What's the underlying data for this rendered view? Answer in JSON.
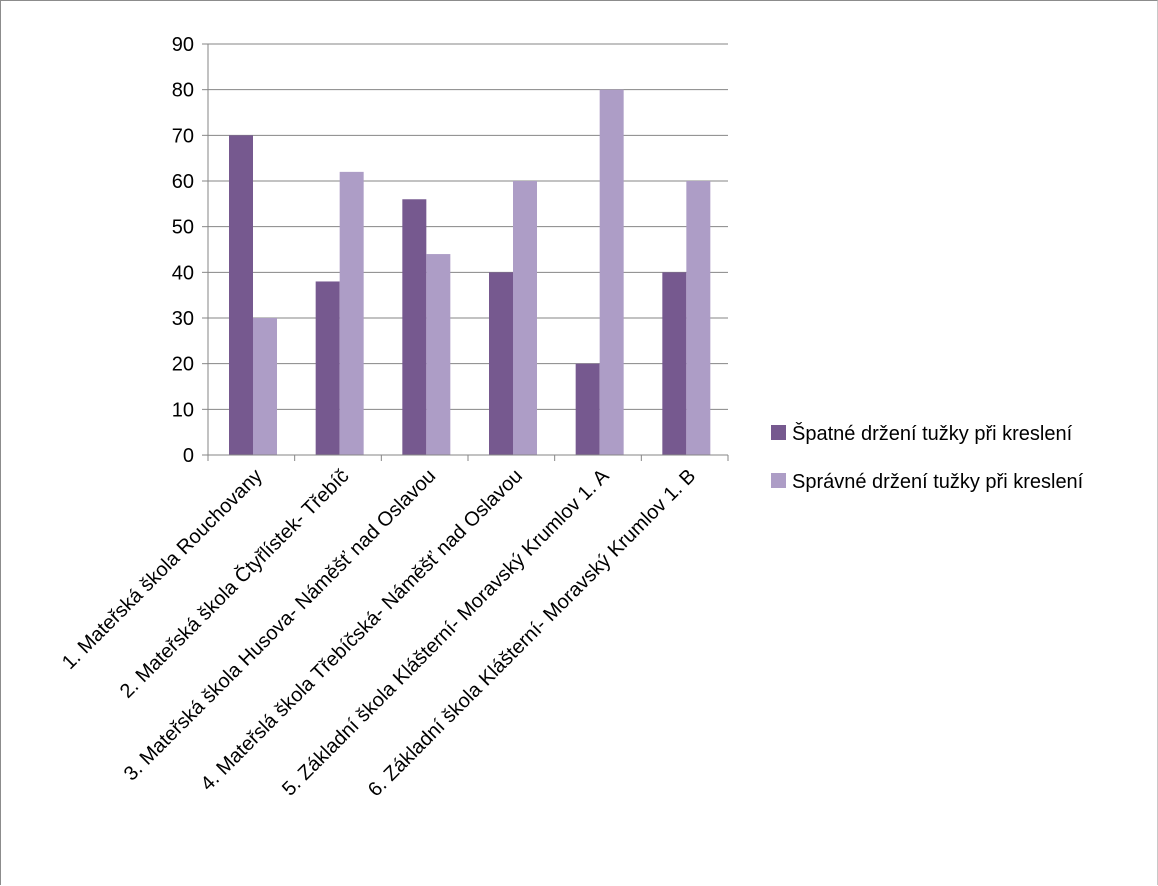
{
  "chart_data": {
    "type": "bar",
    "categories": [
      "1. Mateřská škola Rouchovany",
      "2. Mateřská škola Čtyřlístek- Třebíč",
      "3. Mateřská škola Husova- Náměšť nad Oslavou",
      "4. Mateřslá škola Třebíčská- Náměšť nad Oslavou",
      "5. Základní škola Klášterní- Moravský Krumlov 1. A",
      "6. Základní škola Klášterní- Moravský Krumlov 1. B"
    ],
    "series": [
      {
        "name": "Špatné držení tužky při kreslení",
        "color": "#76598f",
        "values": [
          70,
          38,
          56,
          40,
          20,
          40
        ]
      },
      {
        "name": "Správné držení tužky při kreslení",
        "color": "#ad9dc6",
        "values": [
          30,
          62,
          44,
          60,
          80,
          60
        ]
      }
    ],
    "title": "",
    "xlabel": "",
    "ylabel": "",
    "ylim": [
      0,
      90
    ],
    "yticks": [
      0,
      10,
      20,
      30,
      40,
      50,
      60,
      70,
      80,
      90
    ],
    "grid": true,
    "legend_position": "right"
  }
}
